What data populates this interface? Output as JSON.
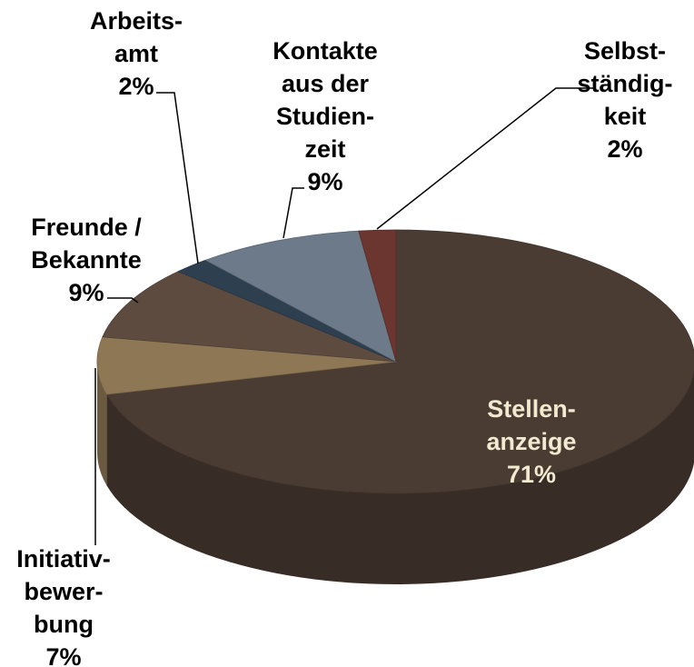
{
  "chart_data": {
    "type": "pie",
    "categories": [
      "Stellen-\nanzeige",
      "Initiativ-\nbewer-\nbung",
      "Freunde /\nBekannte",
      "Arbeits-\namt",
      "Kontakte\naus der\nStudien-\nzeit",
      "Selbst-\nständig-\nkeit"
    ],
    "values": [
      71,
      7,
      9,
      2,
      9,
      2
    ],
    "value_labels": [
      "71%",
      "7%",
      "9%",
      "2%",
      "9%",
      "2%"
    ],
    "colors": [
      "#4a3c32",
      "#8e7755",
      "#5e4b40",
      "#2e3f4f",
      "#6d7a89",
      "#6b3530"
    ]
  }
}
